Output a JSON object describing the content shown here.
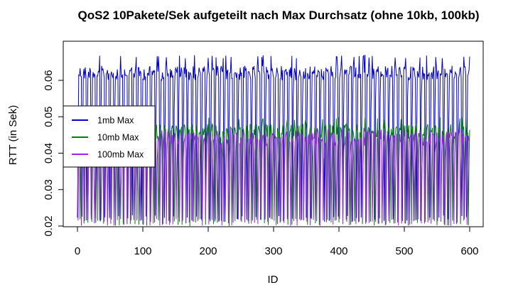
{
  "chart_data": {
    "type": "line",
    "title": "QoS2 10Pakete/Sek aufgeteilt nach Max Durchsatz (ohne 10kb, 100kb)",
    "xlabel": "ID",
    "ylabel": "RTT (in Sek)",
    "xlim": [
      0,
      600
    ],
    "ylim": [
      0.02,
      0.066
    ],
    "x_ticks": [
      0,
      100,
      200,
      300,
      400,
      500,
      600
    ],
    "y_ticks": [
      0.02,
      0.03,
      0.04,
      0.05,
      0.06
    ],
    "x_tick_labels": [
      "0",
      "100",
      "200",
      "300",
      "400",
      "500",
      "600"
    ],
    "y_tick_labels": [
      "0.02",
      "0.03",
      "0.04",
      "0.05",
      "0.06"
    ],
    "grid": false,
    "legend_position": "left",
    "series": [
      {
        "name": "1mb Max",
        "color": "#0000cd",
        "low": 0.021,
        "high": 0.064,
        "peak": 0.067,
        "period": 7
      },
      {
        "name": "10mb Max",
        "color": "#008000",
        "low": 0.02,
        "high": 0.048,
        "peak": 0.05,
        "period": 6
      },
      {
        "name": "100mb Max",
        "color": "#a020f0",
        "low": 0.02,
        "high": 0.046,
        "peak": 0.047,
        "period": 5
      }
    ]
  }
}
